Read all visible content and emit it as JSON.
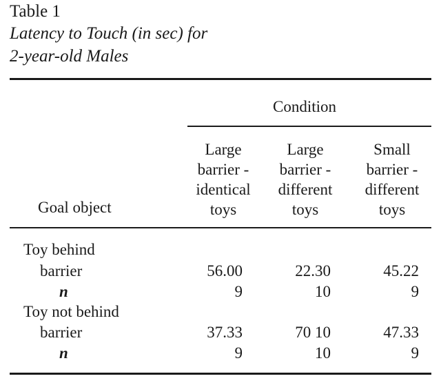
{
  "table": {
    "label": "Table 1",
    "title_line1": "Latency to Touch (in sec) for",
    "title_line2": "2-year-old Males",
    "spanner": "Condition",
    "stub_header": "Goal object",
    "columns": [
      {
        "lines": [
          "Large",
          "barrier -",
          "identical",
          "toys"
        ]
      },
      {
        "lines": [
          "Large",
          "barrier -",
          "different",
          "toys"
        ]
      },
      {
        "lines": [
          "Small",
          "barrier -",
          "different",
          "toys"
        ]
      }
    ],
    "groups": [
      {
        "label_line1": "Toy behind",
        "label_line2": "barrier",
        "values": [
          "56.00",
          "22.30",
          "45.22"
        ],
        "n_label": "n",
        "n_values": [
          "9",
          "10",
          "9"
        ]
      },
      {
        "label_line1": "Toy not behind",
        "label_line2": "barrier",
        "values": [
          "37.33",
          "70 10",
          "47.33"
        ],
        "n_label": "n",
        "n_values": [
          "9",
          "10",
          "9"
        ]
      }
    ]
  }
}
